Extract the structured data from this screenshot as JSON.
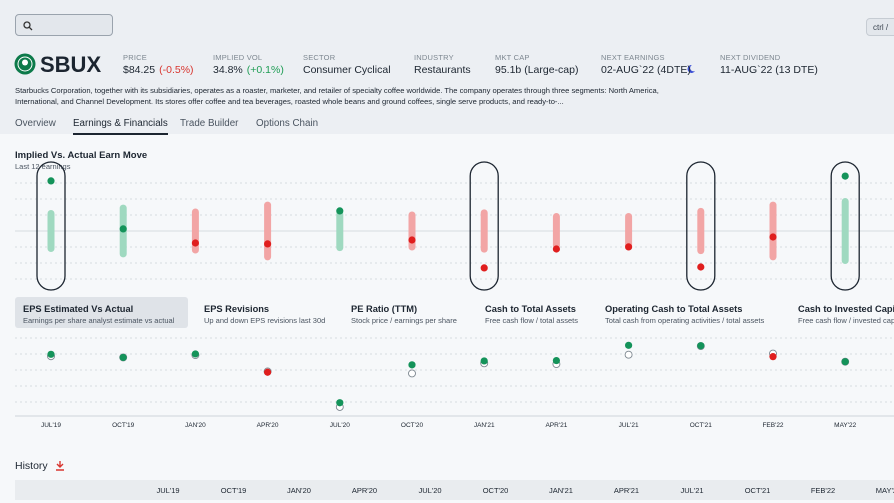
{
  "header": {
    "shortcut": "ctrl /",
    "ticker": "SBUX",
    "fields": [
      {
        "label": "PRICE",
        "value": "$84.25",
        "change": "(-0.5%)"
      },
      {
        "label": "IMPLIED VOL",
        "value": "34.8%",
        "change": "(+0.1%)"
      },
      {
        "label": "SECTOR",
        "value": "Consumer Cyclical"
      },
      {
        "label": "INDUSTRY",
        "value": "Restaurants"
      },
      {
        "label": "MKT CAP",
        "value": "95.1b (Large-cap)"
      },
      {
        "label": "NEXT EARNINGS",
        "value": "02-AUG`22 (4DTE)"
      },
      {
        "label": "NEXT DIVIDEND",
        "value": "11-AUG`22 (13 DTE)"
      }
    ],
    "description": "Starbucks Corporation, together with its subsidiaries, operates as a roaster, marketer, and retailer of specialty coffee worldwide. The company operates through three segments: North America, International, and Channel Development. Its stores offer coffee and tea beverages, roasted whole beans and ground coffees, single serve products, and ready-to-..."
  },
  "tabs": [
    "Overview",
    "Earnings & Financials",
    "Trade Builder",
    "Options Chain"
  ],
  "active_tab": 1,
  "implied_chart": {
    "title": "Implied Vs. Actual Earn Move",
    "subtitle": "Last 12 earnings",
    "implied_move": [
      7,
      8.8,
      7.5,
      9.8,
      6.7,
      6.5,
      7.2,
      6,
      6,
      7.7,
      9.8,
      11
    ],
    "actual_move": [
      16.7,
      0.7,
      -4,
      -4.3,
      6.7,
      -3,
      -12.3,
      -6,
      -5.3,
      -12,
      -2,
      18.3
    ],
    "ylim": [
      -20,
      20
    ]
  },
  "metrics": [
    {
      "title": "EPS Estimated Vs Actual",
      "subtitle": "Earnings per share analyst estimate vs actual"
    },
    {
      "title": "EPS Revisions",
      "subtitle": "Up and down EPS revisions last 30d"
    },
    {
      "title": "PE Ratio (TTM)",
      "subtitle": "Stock price / earnings per share"
    },
    {
      "title": "Cash to Total Assets",
      "subtitle": "Free cash flow / total assets"
    },
    {
      "title": "Operating Cash to Total Assets",
      "subtitle": "Total cash from operating activities / total assets"
    },
    {
      "title": "Cash to Invested Capital",
      "subtitle": "Free cash flow / invested capital"
    }
  ],
  "selected_metric": 0,
  "eps_chart": {
    "categories": [
      "JUL'19",
      "OCT'19",
      "JAN'20",
      "APR'20",
      "JUL'20",
      "OCT'20",
      "JAN'21",
      "APR'21",
      "JUL'21",
      "OCT'21",
      "FEB'22",
      "MAY'22"
    ],
    "estimate": [
      0.73,
      0.7,
      0.76,
      0.34,
      -0.57,
      0.29,
      0.55,
      0.53,
      0.77,
      0.99,
      0.8,
      0.59
    ],
    "actual": [
      0.78,
      0.7,
      0.79,
      0.32,
      -0.46,
      0.51,
      0.61,
      0.62,
      1.01,
      1.0,
      0.72,
      0.59
    ],
    "ylim": [
      -0.8,
      1.3
    ]
  },
  "history": {
    "title": "History"
  }
}
